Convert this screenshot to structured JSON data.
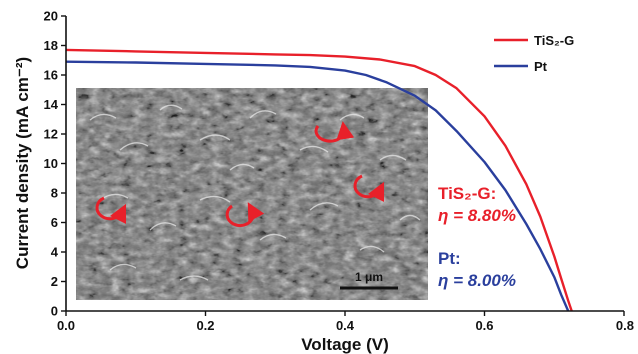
{
  "chart_data": {
    "type": "line",
    "title": "",
    "xlabel": "Voltage (V)",
    "ylabel": "Current density (mA cm⁻²)",
    "xlim": [
      0.0,
      0.8
    ],
    "ylim": [
      0,
      20
    ],
    "x_ticks": [
      "0.0",
      "0.2",
      "0.4",
      "0.6",
      "0.8"
    ],
    "y_ticks": [
      "0",
      "2",
      "4",
      "6",
      "8",
      "10",
      "12",
      "14",
      "16",
      "18",
      "20"
    ],
    "grid": false,
    "legend_position": "top-right",
    "series": [
      {
        "name": "TiS₂-G",
        "color": "#e8202a",
        "x": [
          0.0,
          0.1,
          0.2,
          0.3,
          0.35,
          0.4,
          0.45,
          0.5,
          0.53,
          0.56,
          0.6,
          0.63,
          0.66,
          0.68,
          0.7,
          0.71,
          0.72,
          0.725
        ],
        "y": [
          17.7,
          17.6,
          17.5,
          17.4,
          17.35,
          17.25,
          17.05,
          16.6,
          16.0,
          15.1,
          13.2,
          11.2,
          8.6,
          6.4,
          3.7,
          2.2,
          0.7,
          0.0
        ]
      },
      {
        "name": "Pt",
        "color": "#2a3f9d",
        "x": [
          0.0,
          0.1,
          0.2,
          0.3,
          0.35,
          0.4,
          0.43,
          0.46,
          0.5,
          0.53,
          0.56,
          0.6,
          0.63,
          0.66,
          0.68,
          0.7,
          0.71,
          0.72
        ],
        "y": [
          16.9,
          16.85,
          16.75,
          16.65,
          16.55,
          16.3,
          16.0,
          15.5,
          14.6,
          13.6,
          12.2,
          10.1,
          8.2,
          5.9,
          4.2,
          2.3,
          1.1,
          0.0
        ]
      }
    ],
    "annotations": [
      {
        "series": "TiS₂-G",
        "label": "TiS₂-G:",
        "value": "η = 8.80%",
        "color": "#e8202a"
      },
      {
        "series": "Pt",
        "label": "Pt:",
        "value": "η = 8.00%",
        "color": "#2a3f9d"
      }
    ],
    "inset": {
      "type": "micrograph",
      "scale_bar": "1 μm"
    }
  }
}
